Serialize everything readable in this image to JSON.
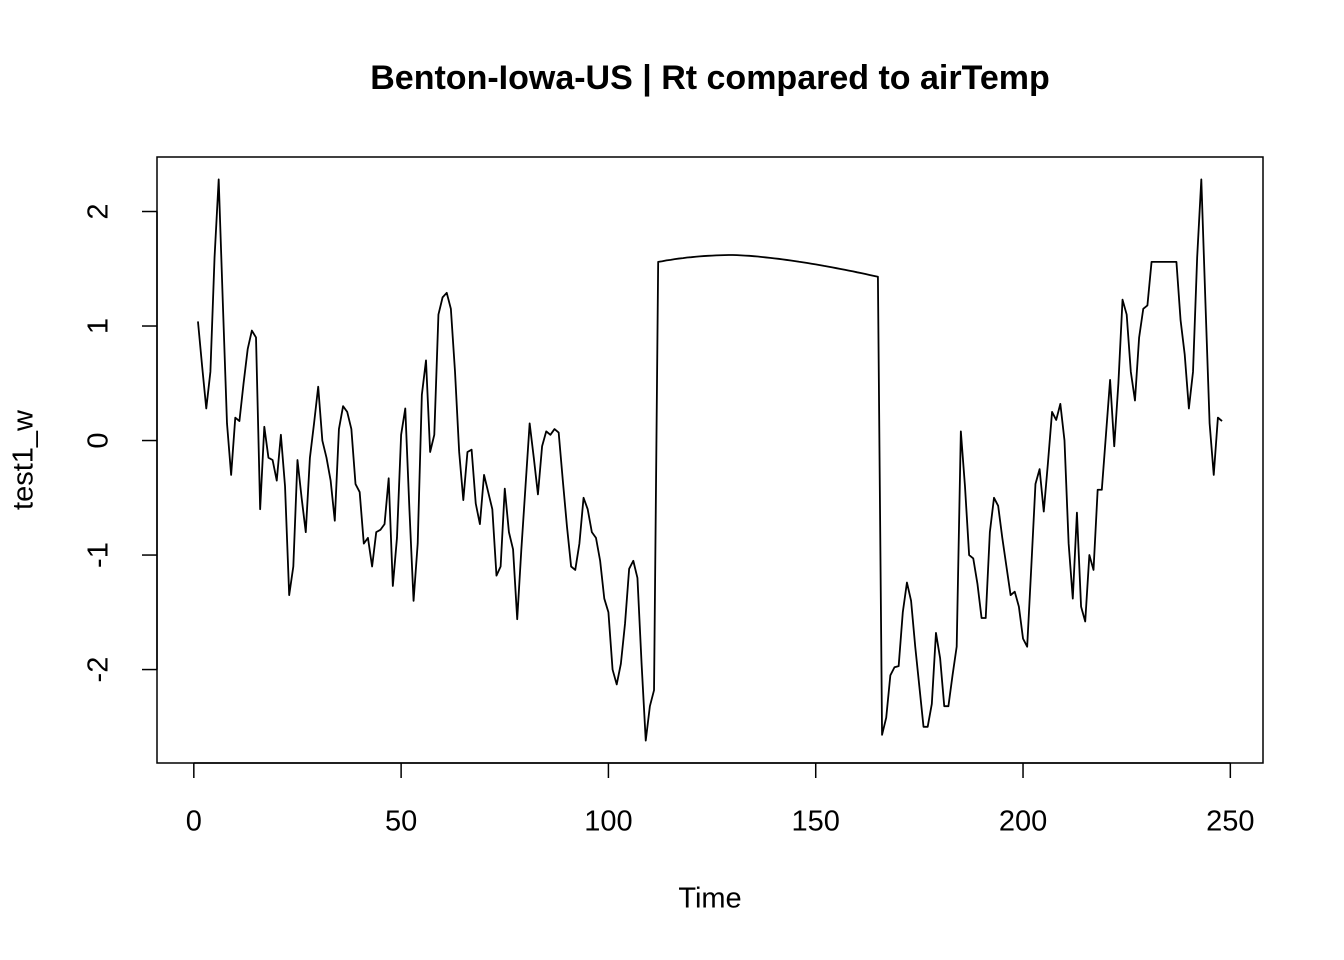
{
  "chart_data": {
    "type": "line",
    "title": "Benton-Iowa-US | Rt compared to airTemp",
    "xlabel": "Time",
    "ylabel": "test1_w",
    "color": "#000000",
    "xlim": [
      -8.88,
      257.88
    ],
    "xticks": [
      0,
      50,
      100,
      150,
      200,
      250
    ],
    "ylim": [
      -2.816,
      2.476
    ],
    "yticks": [
      -2,
      -1,
      0,
      1,
      2
    ],
    "x": [
      1,
      2,
      3,
      4,
      5,
      6,
      7,
      8,
      9,
      10,
      11,
      12,
      13,
      14,
      15,
      16,
      17,
      18,
      19,
      20,
      21,
      22,
      23,
      24,
      25,
      26,
      27,
      28,
      29,
      30,
      31,
      32,
      33,
      34,
      35,
      36,
      37,
      38,
      39,
      40,
      41,
      42,
      43,
      44,
      45,
      46,
      47,
      48,
      49,
      50,
      51,
      52,
      53,
      54,
      55,
      56,
      57,
      58,
      59,
      60,
      61,
      62,
      63,
      64,
      65,
      66,
      67,
      68,
      69,
      70,
      71,
      72,
      73,
      74,
      75,
      76,
      77,
      78,
      79,
      80,
      81,
      82,
      83,
      84,
      85,
      86,
      87,
      88,
      89,
      90,
      91,
      92,
      93,
      94,
      95,
      96,
      97,
      98,
      99,
      100,
      101,
      102,
      103,
      104,
      105,
      106,
      107,
      108,
      109,
      110,
      111,
      112,
      113,
      114,
      115,
      116,
      117,
      118,
      119,
      120,
      121,
      122,
      123,
      124,
      125,
      126,
      127,
      128,
      129,
      130,
      131,
      132,
      133,
      134,
      135,
      136,
      137,
      138,
      139,
      140,
      141,
      142,
      143,
      144,
      145,
      146,
      147,
      148,
      149,
      150,
      151,
      152,
      153,
      154,
      155,
      156,
      157,
      158,
      159,
      160,
      161,
      162,
      163,
      164,
      165,
      166,
      167,
      168,
      169,
      170,
      171,
      172,
      173,
      174,
      175,
      176,
      177,
      178,
      179,
      180,
      181,
      182,
      183,
      184,
      185,
      186,
      187,
      188,
      189,
      190,
      191,
      192,
      193,
      194,
      195,
      196,
      197,
      198,
      199,
      200,
      201,
      202,
      203,
      204,
      205,
      206,
      207,
      208,
      209,
      210,
      211,
      212,
      213,
      214,
      215,
      216,
      217,
      218,
      219,
      220,
      221,
      222,
      223,
      224,
      225,
      226,
      227,
      228,
      229,
      230,
      231,
      232,
      233,
      234,
      235,
      236,
      237,
      238,
      239,
      240,
      241,
      242,
      243,
      244,
      245,
      246,
      247,
      248
    ],
    "values": [
      1.04,
      0.65,
      0.28,
      0.6,
      1.6,
      2.28,
      1.2,
      0.15,
      -0.3,
      0.2,
      0.17,
      0.5,
      0.8,
      0.96,
      0.9,
      -0.6,
      0.12,
      -0.15,
      -0.17,
      -0.35,
      0.05,
      -0.4,
      -1.35,
      -1.1,
      -0.17,
      -0.5,
      -0.8,
      -0.15,
      0.15,
      0.47,
      0,
      -0.15,
      -0.35,
      -0.7,
      0.1,
      0.3,
      0.25,
      0.1,
      -0.38,
      -0.45,
      -0.9,
      -0.85,
      -1.1,
      -0.8,
      -0.78,
      -0.73,
      -0.33,
      -1.27,
      -0.85,
      0.05,
      0.28,
      -0.6,
      -1.4,
      -0.9,
      0.4,
      0.7,
      -0.1,
      0.05,
      1.1,
      1.25,
      1.29,
      1.15,
      0.6,
      -0.1,
      -0.52,
      -0.1,
      -0.08,
      -0.55,
      -0.73,
      -0.3,
      -0.45,
      -0.6,
      -1.18,
      -1.1,
      -0.42,
      -0.8,
      -0.95,
      -1.56,
      -0.95,
      -0.4,
      0.15,
      -0.15,
      -0.47,
      -0.05,
      0.08,
      0.05,
      0.1,
      0.07,
      -0.35,
      -0.75,
      -1.1,
      -1.13,
      -0.9,
      -0.5,
      -0.6,
      -0.8,
      -0.85,
      -1.05,
      -1.38,
      -1.5,
      -2,
      -2.13,
      -1.95,
      -1.6,
      -1.12,
      -1.05,
      -1.2,
      -1.95,
      -2.62,
      -2.32,
      -2.18,
      1.56,
      1.566,
      1.573,
      1.578,
      1.584,
      1.589,
      1.593,
      1.598,
      1.601,
      1.605,
      1.608,
      1.611,
      1.613,
      1.615,
      1.617,
      1.618,
      1.619,
      1.62,
      1.62,
      1.619,
      1.617,
      1.615,
      1.613,
      1.61,
      1.607,
      1.603,
      1.599,
      1.595,
      1.591,
      1.587,
      1.582,
      1.577,
      1.572,
      1.567,
      1.561,
      1.556,
      1.55,
      1.544,
      1.538,
      1.532,
      1.525,
      1.519,
      1.512,
      1.505,
      1.498,
      1.491,
      1.484,
      1.477,
      1.469,
      1.462,
      1.454,
      1.446,
      1.438,
      1.43,
      -2.57,
      -2.42,
      -2.05,
      -1.98,
      -1.97,
      -1.5,
      -1.24,
      -1.4,
      -1.8,
      -2.15,
      -2.5,
      -2.5,
      -2.3,
      -1.68,
      -1.9,
      -2.32,
      -2.32,
      -2.05,
      -1.8,
      0.08,
      -0.4,
      -1,
      -1.03,
      -1.25,
      -1.55,
      -1.55,
      -0.8,
      -0.5,
      -0.57,
      -0.85,
      -1.1,
      -1.35,
      -1.32,
      -1.45,
      -1.73,
      -1.8,
      -1.1,
      -0.38,
      -0.25,
      -0.62,
      -0.2,
      0.25,
      0.18,
      0.32,
      0,
      -0.9,
      -1.38,
      -0.63,
      -1.45,
      -1.58,
      -1,
      -1.13,
      -0.43,
      -0.43,
      0.05,
      0.53,
      -0.05,
      0.5,
      1.23,
      1.1,
      0.6,
      0.35,
      0.9,
      1.15,
      1.18,
      1.56,
      1.56,
      1.56,
      1.56,
      1.56,
      1.56,
      1.56,
      1.05,
      0.75,
      0.28,
      0.6,
      1.6,
      2.28,
      1.2,
      0.15,
      -0.3,
      0.2,
      0.17
    ]
  }
}
